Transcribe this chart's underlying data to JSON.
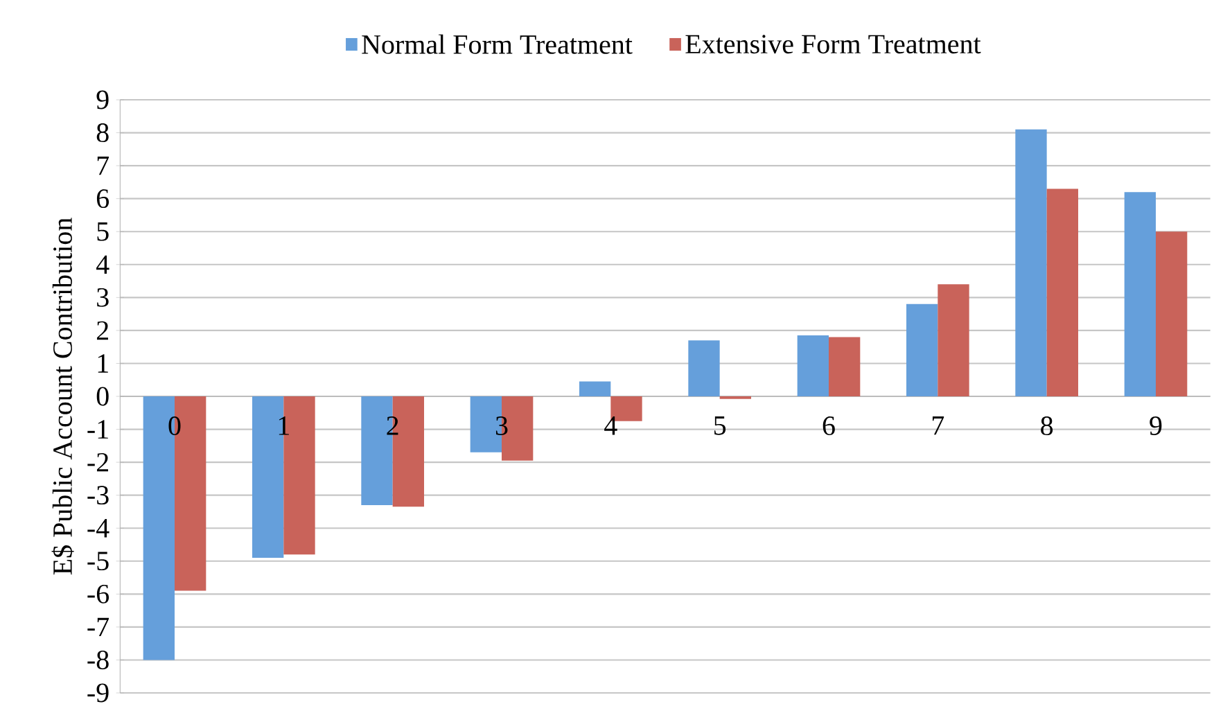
{
  "chart_data": {
    "type": "bar",
    "ylabel": "E$ Public Account Contribution",
    "categories": [
      "0",
      "1",
      "2",
      "3",
      "4",
      "5",
      "6",
      "7",
      "8",
      "9"
    ],
    "series": [
      {
        "name": "Normal Form Treatment",
        "color": "#659fdb",
        "values": [
          -8,
          -4.9,
          -3.3,
          -1.7,
          0.45,
          1.7,
          1.85,
          2.8,
          8.1,
          6.2
        ]
      },
      {
        "name": "Extensive Form Treatment",
        "color": "#c9635a",
        "values": [
          -5.9,
          -4.8,
          -3.35,
          -1.95,
          -0.75,
          -0.08,
          1.8,
          3.4,
          6.3,
          5.0
        ]
      }
    ],
    "ylim": [
      -9,
      9
    ],
    "yticks": [
      -9,
      -8,
      -7,
      -6,
      -5,
      -4,
      -3,
      -2,
      -1,
      0,
      1,
      2,
      3,
      4,
      5,
      6,
      7,
      8,
      9
    ],
    "grid": "y",
    "legend": "top"
  }
}
